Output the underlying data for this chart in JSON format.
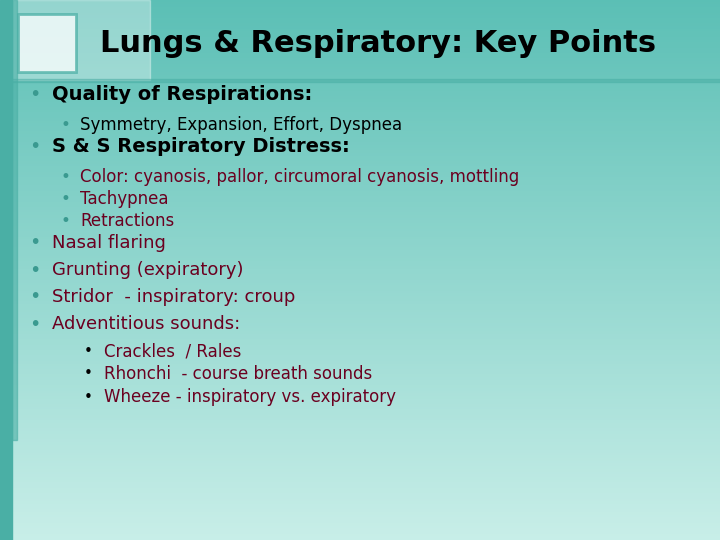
{
  "title": "Lungs & Respiratory: Key Points",
  "title_fontsize": 22,
  "title_color": "#000000",
  "bg_teal": "#5BBFB5",
  "bg_light": "#B8E8E2",
  "sidebar_teal": "#4AAFA5",
  "bullet_teal": "#3A9A90",
  "dark_red": "#6B0020",
  "black": "#000000",
  "lines": [
    {
      "indent": 0,
      "bold": true,
      "color": "#000000",
      "text": "Quality of Respirations:"
    },
    {
      "indent": 1,
      "bold": false,
      "color": "#000000",
      "text": "Symmetry, Expansion, Effort, Dyspnea"
    },
    {
      "indent": 0,
      "bold": true,
      "color": "#000000",
      "text": "S & S Respiratory Distress:"
    },
    {
      "indent": 1,
      "bold": false,
      "color": "#6B0020",
      "text": "Color: cyanosis, pallor, circumoral cyanosis, mottling"
    },
    {
      "indent": 1,
      "bold": false,
      "color": "#6B0020",
      "text": "Tachypnea"
    },
    {
      "indent": 1,
      "bold": false,
      "color": "#6B0020",
      "text": "Retractions"
    },
    {
      "indent": 0,
      "bold": false,
      "color": "#6B0020",
      "text": "Nasal flaring"
    },
    {
      "indent": 0,
      "bold": false,
      "color": "#6B0020",
      "text": "Grunting (expiratory)"
    },
    {
      "indent": 0,
      "bold": false,
      "color": "#6B0020",
      "text": "Stridor  - inspiratory: croup"
    },
    {
      "indent": 0,
      "bold": false,
      "color": "#6B0020",
      "text": "Adventitious sounds:"
    },
    {
      "indent": 2,
      "bold": false,
      "color": "#6B0020",
      "text": "Crackles  / Rales"
    },
    {
      "indent": 2,
      "bold": false,
      "color": "#6B0020",
      "text": "Rhonchi  - course breath sounds"
    },
    {
      "indent": 2,
      "bold": false,
      "color": "#6B0020",
      "text": "Wheeze - inspiratory vs. expiratory"
    }
  ],
  "line_heights": [
    30,
    22,
    30,
    22,
    22,
    22,
    27,
    27,
    27,
    27,
    23,
    23,
    23
  ]
}
